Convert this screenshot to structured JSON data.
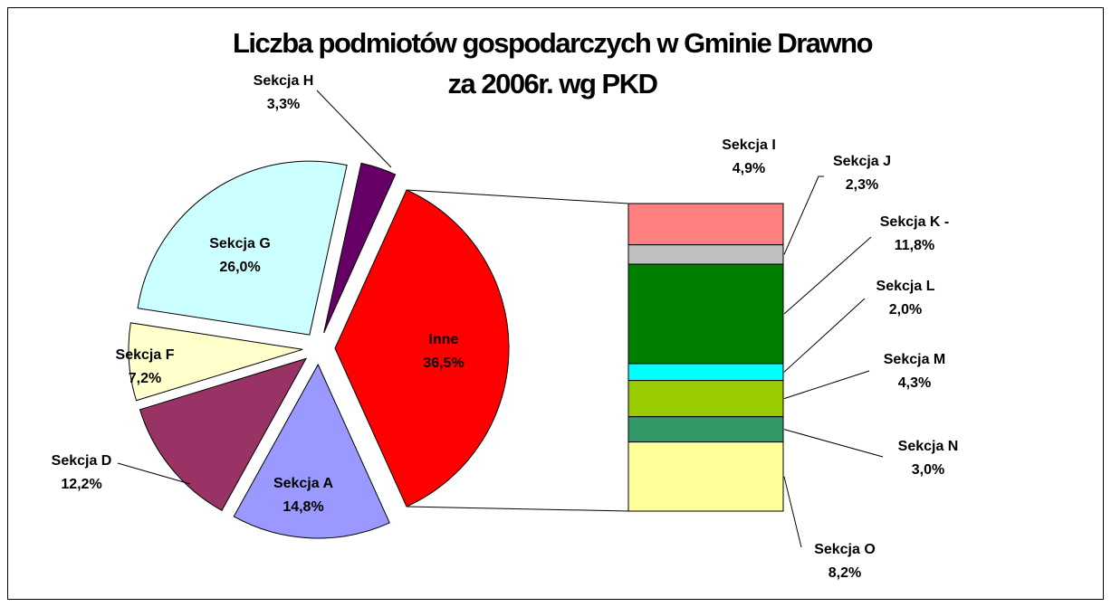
{
  "chart_data": {
    "type": "bar-of-pie",
    "title": [
      "Liczba podmiotów gospodarczych w Gminie Drawno",
      "za 2006r. wg PKD"
    ],
    "pie": {
      "categories": [
        "Inne",
        "Sekcja A",
        "Sekcja D",
        "Sekcja F",
        "Sekcja G",
        "Sekcja H"
      ],
      "values": [
        36.5,
        14.8,
        12.2,
        7.2,
        26.0,
        3.3
      ],
      "value_labels": [
        "36,5%",
        "14,8%",
        "12,2%",
        "7,2%",
        "26,0%",
        "3,3%"
      ],
      "colors": [
        "#ff0000",
        "#9999ff",
        "#993366",
        "#ffffcc",
        "#ccffff",
        "#660066"
      ]
    },
    "bar": {
      "categories": [
        "Sekcja I",
        "Sekcja J",
        "Sekcja K -",
        "Sekcja L",
        "Sekcja M",
        "Sekcja N",
        "Sekcja O"
      ],
      "values": [
        4.9,
        2.3,
        11.8,
        2.0,
        4.3,
        3.0,
        8.2
      ],
      "value_labels": [
        "4,9%",
        "2,3%",
        "11,8%",
        "2,0%",
        "4,3%",
        "3,0%",
        "8,2%"
      ],
      "colors": [
        "#ff8080",
        "#c0c0c0",
        "#008000",
        "#00ffff",
        "#99cc00",
        "#339966",
        "#ffff99"
      ]
    }
  }
}
